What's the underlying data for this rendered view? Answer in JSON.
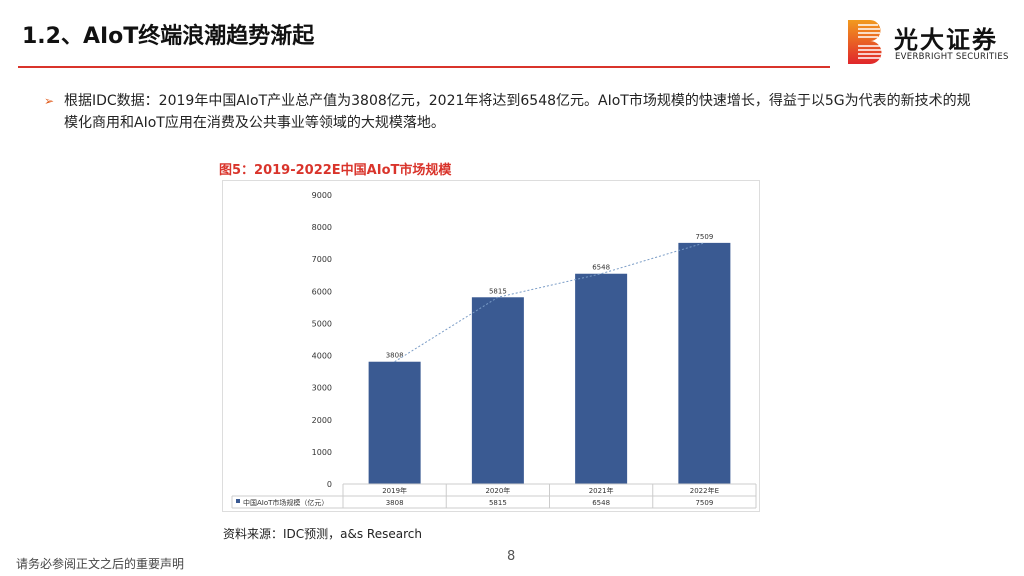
{
  "header": {
    "title": "1.2、AIoT终端浪潮趋势渐起"
  },
  "logo": {
    "name_cn": "光大证券",
    "name_en": "EVERBRIGHT SECURITIES"
  },
  "bullet": {
    "text": "根据IDC数据：2019年中国AIoT产业总产值为3808亿元，2021年将达到6548亿元。AIoT市场规模的快速增长，得益于以5G为代表的新技术的规模化商用和AIoT应用在消费及公共事业等领域的大规模落地。"
  },
  "figure": {
    "title": "图5：2019-2022E中国AIoT市场规模",
    "source": "资料来源：IDC预测，a&s Research"
  },
  "chart_data": {
    "type": "bar",
    "title": "",
    "categories": [
      "2019年",
      "2020年",
      "2021年",
      "2022年E"
    ],
    "series": [
      {
        "name": "中国AIoT市场规模（亿元）",
        "values": [
          3808,
          5815,
          6548,
          7509
        ],
        "color": "#3a5a92"
      }
    ],
    "trendline": {
      "style": "dotted",
      "color": "#7a9cc6"
    },
    "ylim": [
      0,
      9000
    ],
    "yticks": [
      0,
      1000,
      2000,
      3000,
      4000,
      5000,
      6000,
      7000,
      8000,
      9000
    ],
    "data_table": true,
    "grid": false
  },
  "footer": {
    "disclaimer": "请务必参阅正文之后的重要声明",
    "page": "8"
  }
}
